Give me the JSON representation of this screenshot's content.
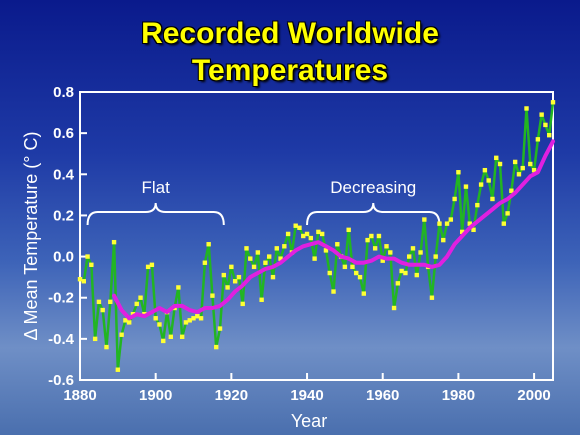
{
  "title_line1": "Recorded Worldwide",
  "title_line2": "Temperatures",
  "chart_data": {
    "type": "line",
    "title": "Recorded Worldwide Temperatures",
    "xlabel": "Year",
    "ylabel": "Δ Mean Temperature (° C)",
    "xlim": [
      1880,
      2005
    ],
    "ylim": [
      -0.6,
      0.8
    ],
    "xticks": [
      "1880",
      "1900",
      "1920",
      "1940",
      "1960",
      "1980",
      "2000"
    ],
    "yticks": [
      "0.8",
      "0.6",
      "0.4",
      "0.2",
      "0.0",
      "-0.2",
      "-0.4",
      "-0.6"
    ],
    "grid": false,
    "colors": {
      "annual": "#22b522",
      "markers": "#ffff33",
      "smoothed": "#e020e0",
      "axes": "#ffffff"
    },
    "series": [
      {
        "kind": "annual",
        "x": [
          1880,
          1881,
          1882,
          1883,
          1884,
          1885,
          1886,
          1887,
          1888,
          1889,
          1890,
          1891,
          1892,
          1893,
          1894,
          1895,
          1896,
          1897,
          1898,
          1899,
          1900,
          1901,
          1902,
          1903,
          1904,
          1905,
          1906,
          1907,
          1908,
          1909,
          1910,
          1911,
          1912,
          1913,
          1914,
          1915,
          1916,
          1917,
          1918,
          1919,
          1920,
          1921,
          1922,
          1923,
          1924,
          1925,
          1926,
          1927,
          1928,
          1929,
          1930,
          1931,
          1932,
          1933,
          1934,
          1935,
          1936,
          1937,
          1938,
          1939,
          1940,
          1941,
          1942,
          1943,
          1944,
          1945,
          1946,
          1947,
          1948,
          1949,
          1950,
          1951,
          1952,
          1953,
          1954,
          1955,
          1956,
          1957,
          1958,
          1959,
          1960,
          1961,
          1962,
          1963,
          1964,
          1965,
          1966,
          1967,
          1968,
          1969,
          1970,
          1971,
          1972,
          1973,
          1974,
          1975,
          1976,
          1977,
          1978,
          1979,
          1980,
          1981,
          1982,
          1983,
          1984,
          1985,
          1986,
          1987,
          1988,
          1989,
          1990,
          1991,
          1992,
          1993,
          1994,
          1995,
          1996,
          1997,
          1998,
          1999,
          2000,
          2001,
          2002,
          2003,
          2004,
          2005
        ],
        "y": [
          -0.11,
          -0.12,
          0.0,
          -0.04,
          -0.4,
          -0.22,
          -0.26,
          -0.44,
          -0.22,
          0.07,
          -0.55,
          -0.38,
          -0.31,
          -0.32,
          -0.28,
          -0.23,
          -0.2,
          -0.28,
          -0.05,
          -0.04,
          -0.3,
          -0.33,
          -0.41,
          -0.27,
          -0.39,
          -0.25,
          -0.15,
          -0.39,
          -0.32,
          -0.31,
          -0.3,
          -0.29,
          -0.3,
          -0.03,
          0.06,
          -0.19,
          -0.44,
          -0.35,
          -0.09,
          -0.15,
          -0.05,
          -0.12,
          -0.1,
          -0.23,
          0.04,
          -0.01,
          -0.05,
          0.02,
          -0.21,
          -0.03,
          0.0,
          -0.1,
          0.04,
          -0.01,
          0.05,
          0.11,
          0.02,
          0.15,
          0.14,
          0.1,
          0.11,
          0.09,
          -0.01,
          0.12,
          0.11,
          0.03,
          -0.08,
          -0.17,
          0.06,
          0.0,
          -0.05,
          0.13,
          -0.05,
          -0.08,
          -0.1,
          -0.18,
          0.08,
          0.1,
          0.04,
          0.1,
          -0.02,
          0.05,
          0.02,
          -0.25,
          -0.13,
          -0.07,
          -0.08,
          0.0,
          0.04,
          -0.09,
          0.02,
          0.18,
          -0.05,
          -0.2,
          0.0,
          0.16,
          0.08,
          0.16,
          0.18,
          0.28,
          0.41,
          0.12,
          0.34,
          0.16,
          0.13,
          0.25,
          0.35,
          0.42,
          0.37,
          0.28,
          0.48,
          0.45,
          0.16,
          0.21,
          0.32,
          0.46,
          0.4,
          0.43,
          0.72,
          0.45,
          0.42,
          0.57,
          0.69,
          0.64,
          0.59,
          0.75
        ]
      },
      {
        "kind": "smoothed",
        "x": [
          1889,
          1891,
          1893,
          1895,
          1897,
          1899,
          1901,
          1903,
          1905,
          1907,
          1909,
          1911,
          1913,
          1915,
          1917,
          1919,
          1921,
          1923,
          1925,
          1927,
          1929,
          1931,
          1933,
          1935,
          1937,
          1939,
          1941,
          1943,
          1945,
          1947,
          1949,
          1951,
          1953,
          1955,
          1957,
          1959,
          1961,
          1963,
          1965,
          1967,
          1969,
          1971,
          1973,
          1975,
          1977,
          1979,
          1981,
          1983,
          1985,
          1987,
          1989,
          1991,
          1993,
          1995,
          1997,
          1999,
          2001,
          2003,
          2005
        ],
        "y": [
          -0.19,
          -0.26,
          -0.3,
          -0.28,
          -0.29,
          -0.27,
          -0.25,
          -0.27,
          -0.24,
          -0.24,
          -0.26,
          -0.27,
          -0.25,
          -0.25,
          -0.24,
          -0.21,
          -0.17,
          -0.14,
          -0.1,
          -0.08,
          -0.06,
          -0.05,
          -0.03,
          0.0,
          0.03,
          0.05,
          0.06,
          0.07,
          0.05,
          0.03,
          0.0,
          -0.01,
          -0.03,
          -0.03,
          -0.02,
          0.0,
          -0.01,
          -0.01,
          -0.03,
          -0.04,
          -0.04,
          -0.04,
          -0.05,
          -0.04,
          0.0,
          0.06,
          0.1,
          0.14,
          0.17,
          0.2,
          0.23,
          0.26,
          0.28,
          0.31,
          0.35,
          0.39,
          0.41,
          0.49,
          0.56
        ]
      }
    ],
    "annotations": [
      {
        "text": "Flat",
        "x_range": [
          1882,
          1918
        ]
      },
      {
        "text": "Decreasing",
        "x_range": [
          1940,
          1975
        ]
      }
    ]
  }
}
